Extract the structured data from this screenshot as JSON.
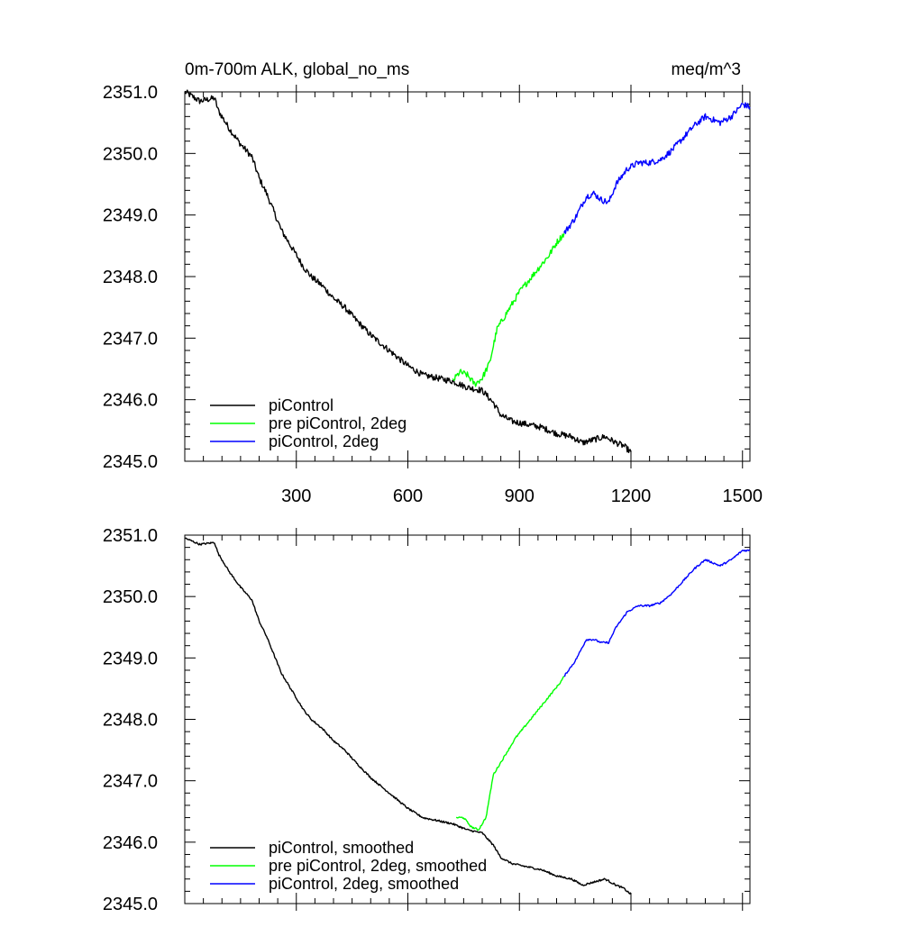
{
  "chart_data": [
    {
      "type": "line",
      "title": "0m-700m ALK, global_no_ms",
      "units": "meq/m^3",
      "xlim": [
        0,
        1520
      ],
      "ylim": [
        2345.0,
        2351.0
      ],
      "xticks": [
        300,
        600,
        900,
        1200,
        1500
      ],
      "yticks": [
        "2345.0",
        "2346.0",
        "2347.0",
        "2348.0",
        "2349.0",
        "2350.0",
        "2351.0"
      ],
      "show_x_tick_labels": true,
      "legend_position": "bottom-left",
      "series": [
        {
          "name": "piControl",
          "color": "#000000",
          "x": [
            1,
            40,
            80,
            90,
            120,
            150,
            180,
            200,
            220,
            240,
            260,
            280,
            300,
            320,
            340,
            370,
            400,
            430,
            460,
            500,
            540,
            570,
            600,
            640,
            680,
            720,
            760,
            800,
            830,
            850,
            880,
            920,
            960,
            1000,
            1040,
            1070,
            1100,
            1130,
            1160,
            1180,
            1200
          ],
          "y": [
            2351.0,
            2350.85,
            2350.9,
            2350.7,
            2350.4,
            2350.15,
            2349.95,
            2349.6,
            2349.35,
            2349.05,
            2348.75,
            2348.55,
            2348.35,
            2348.15,
            2348.0,
            2347.85,
            2347.65,
            2347.5,
            2347.3,
            2347.05,
            2346.85,
            2346.7,
            2346.55,
            2346.4,
            2346.35,
            2346.3,
            2346.2,
            2346.15,
            2345.95,
            2345.75,
            2345.65,
            2345.6,
            2345.55,
            2345.45,
            2345.4,
            2345.3,
            2345.35,
            2345.4,
            2345.3,
            2345.25,
            2345.15
          ]
        },
        {
          "name": "pre piControl, 2deg",
          "color": "#00ff00",
          "x": [
            720,
            740,
            760,
            780,
            800,
            820,
            840,
            860,
            880,
            900,
            920,
            940,
            960,
            980,
            1000,
            1020
          ],
          "y": [
            2346.3,
            2346.45,
            2346.4,
            2346.25,
            2346.35,
            2346.6,
            2347.15,
            2347.35,
            2347.55,
            2347.75,
            2347.9,
            2348.05,
            2348.2,
            2348.35,
            2348.55,
            2348.7
          ]
        },
        {
          "name": "piControl, 2deg",
          "color": "#0000ff",
          "x": [
            1020,
            1050,
            1080,
            1100,
            1120,
            1140,
            1160,
            1190,
            1220,
            1250,
            1280,
            1310,
            1340,
            1370,
            1400,
            1420,
            1440,
            1470,
            1500,
            1520
          ],
          "y": [
            2348.7,
            2348.95,
            2349.3,
            2349.35,
            2349.25,
            2349.2,
            2349.5,
            2349.75,
            2349.85,
            2349.85,
            2349.9,
            2350.05,
            2350.25,
            2350.45,
            2350.6,
            2350.55,
            2350.5,
            2350.6,
            2350.8,
            2350.75
          ]
        }
      ]
    },
    {
      "type": "line",
      "title": "",
      "units": "",
      "xlim": [
        0,
        1520
      ],
      "ylim": [
        2345.0,
        2351.0
      ],
      "xticks": [
        300,
        600,
        900,
        1200,
        1500
      ],
      "yticks": [
        "2345.0",
        "2346.0",
        "2347.0",
        "2348.0",
        "2349.0",
        "2350.0",
        "2351.0"
      ],
      "show_x_tick_labels": false,
      "legend_position": "bottom-left",
      "series": [
        {
          "name": "piControl, smoothed",
          "color": "#000000",
          "x": [
            1,
            40,
            80,
            90,
            120,
            150,
            180,
            200,
            220,
            240,
            260,
            280,
            300,
            320,
            340,
            370,
            400,
            430,
            460,
            500,
            540,
            570,
            600,
            640,
            680,
            720,
            760,
            800,
            830,
            850,
            880,
            920,
            960,
            1000,
            1040,
            1070,
            1100,
            1130,
            1160,
            1180,
            1200
          ],
          "y": [
            2350.95,
            2350.85,
            2350.88,
            2350.7,
            2350.4,
            2350.15,
            2349.95,
            2349.6,
            2349.35,
            2349.05,
            2348.75,
            2348.55,
            2348.35,
            2348.15,
            2348.0,
            2347.85,
            2347.65,
            2347.5,
            2347.3,
            2347.05,
            2346.85,
            2346.7,
            2346.55,
            2346.4,
            2346.35,
            2346.3,
            2346.2,
            2346.15,
            2345.95,
            2345.75,
            2345.65,
            2345.6,
            2345.55,
            2345.45,
            2345.4,
            2345.3,
            2345.35,
            2345.4,
            2345.3,
            2345.25,
            2345.15
          ]
        },
        {
          "name": "pre piControl, 2deg, smoothed",
          "color": "#00ff00",
          "x": [
            730,
            750,
            770,
            790,
            810,
            830,
            850,
            870,
            890,
            910,
            930,
            950,
            970,
            990,
            1010,
            1020
          ],
          "y": [
            2346.4,
            2346.4,
            2346.25,
            2346.2,
            2346.4,
            2347.1,
            2347.3,
            2347.5,
            2347.7,
            2347.85,
            2348.0,
            2348.15,
            2348.3,
            2348.45,
            2348.6,
            2348.7
          ]
        },
        {
          "name": "piControl, 2deg, smoothed",
          "color": "#0000ff",
          "x": [
            1020,
            1050,
            1080,
            1100,
            1120,
            1140,
            1160,
            1190,
            1220,
            1250,
            1280,
            1310,
            1340,
            1370,
            1400,
            1420,
            1440,
            1470,
            1500,
            1520
          ],
          "y": [
            2348.7,
            2348.95,
            2349.3,
            2349.3,
            2349.25,
            2349.25,
            2349.5,
            2349.75,
            2349.85,
            2349.85,
            2349.9,
            2350.05,
            2350.25,
            2350.45,
            2350.6,
            2350.55,
            2350.5,
            2350.6,
            2350.75,
            2350.75
          ]
        }
      ]
    }
  ]
}
